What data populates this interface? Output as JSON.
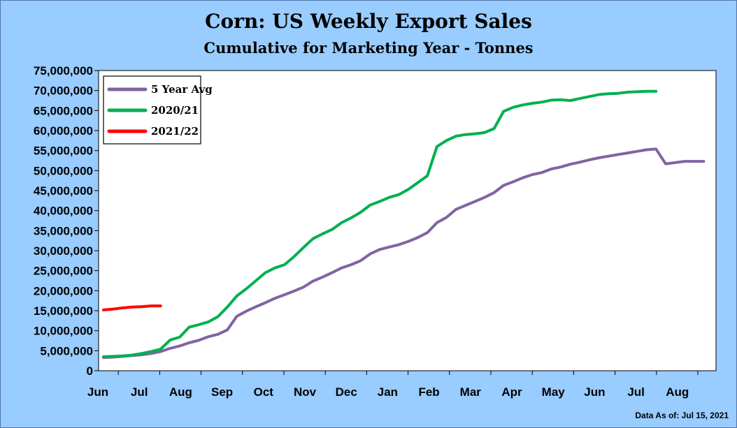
{
  "chart_data": {
    "type": "line",
    "title": "Corn: US Weekly Export Sales",
    "subtitle": "Cumulative for Marketing Year - Tonnes",
    "footnote": "Data As of: Jul 15, 2021",
    "y_ticks": [
      "0",
      "5,000,000",
      "10,000,000",
      "15,000,000",
      "20,000,000",
      "25,000,000",
      "30,000,000",
      "35,000,000",
      "40,000,000",
      "45,000,000",
      "50,000,000",
      "55,000,000",
      "60,000,000",
      "65,000,000",
      "70,000,000",
      "75,000,000"
    ],
    "ylim": [
      0,
      75000000
    ],
    "months": [
      "Jun",
      "Jul",
      "Aug",
      "Sep",
      "Oct",
      "Nov",
      "Dec",
      "Jan",
      "Feb",
      "Mar",
      "Apr",
      "May",
      "Jun",
      "Jul",
      "Aug"
    ],
    "x_unit": "weeks",
    "xlim": [
      0,
      62
    ],
    "grid": false,
    "legend_position": "top-left",
    "series": [
      {
        "name": "5 Year Avg",
        "color": "#8064a2",
        "x": [
          0,
          1,
          2,
          3,
          4,
          5,
          6,
          7,
          8,
          9,
          10,
          11,
          12,
          13,
          14,
          15,
          16,
          17,
          18,
          19,
          20,
          21,
          22,
          23,
          24,
          25,
          26,
          27,
          28,
          29,
          30,
          31,
          32,
          33,
          34,
          35,
          36,
          37,
          38,
          39,
          40,
          41,
          42,
          43,
          44,
          45,
          46,
          47,
          48,
          49,
          50,
          51,
          52,
          53,
          54,
          55,
          56,
          57,
          58,
          59,
          60,
          61
        ],
        "values": [
          3300000,
          3400000,
          3600000,
          3800000,
          4000000,
          4300000,
          4800000,
          5600000,
          6200000,
          7000000,
          7600000,
          8500000,
          9100000,
          10200000,
          13600000,
          14900000,
          16000000,
          17000000,
          18100000,
          19000000,
          19900000,
          20900000,
          22400000,
          23400000,
          24500000,
          25700000,
          26500000,
          27500000,
          29200000,
          30300000,
          30900000,
          31500000,
          32300000,
          33300000,
          34500000,
          37000000,
          38300000,
          40300000,
          41300000,
          42300000,
          43300000,
          44500000,
          46300000,
          47200000,
          48200000,
          49000000,
          49500000,
          50400000,
          50900000,
          51600000,
          52100000,
          52700000,
          53200000,
          53600000,
          54000000,
          54400000,
          54800000,
          55200000,
          55400000,
          51700000,
          52000000,
          52300000
        ],
        "x_tail": [
          62,
          63
        ],
        "values_tail": [
          52300000,
          52300000
        ]
      },
      {
        "name": "2020/21",
        "color": "#00b050",
        "x": [
          0,
          1,
          2,
          3,
          4,
          5,
          6,
          7,
          8,
          9,
          10,
          11,
          12,
          13,
          14,
          15,
          16,
          17,
          18,
          19,
          20,
          21,
          22,
          23,
          24,
          25,
          26,
          27,
          28,
          29,
          30,
          31,
          32,
          33,
          34,
          35,
          36,
          37,
          38,
          39,
          40,
          41,
          42,
          43,
          44,
          45,
          46,
          47,
          48,
          49,
          50,
          51,
          52,
          53,
          54,
          55,
          56,
          57,
          58
        ],
        "values": [
          3500000,
          3600000,
          3700000,
          3900000,
          4300000,
          4800000,
          5400000,
          7700000,
          8400000,
          10900000,
          11500000,
          12200000,
          13500000,
          15900000,
          18700000,
          20500000,
          22500000,
          24500000,
          25700000,
          26500000,
          28500000,
          30800000,
          33000000,
          34200000,
          35300000,
          37000000,
          38200000,
          39600000,
          41400000,
          42300000,
          43300000,
          44000000,
          45300000,
          47000000,
          48700000,
          56000000,
          57500000,
          58600000,
          59000000,
          59200000,
          59500000,
          60500000,
          64800000,
          65800000,
          66400000,
          66800000,
          67100000,
          67600000,
          67700000,
          67500000,
          68000000,
          68500000,
          69000000,
          69200000,
          69300000,
          69600000,
          69700000,
          69800000,
          69800000
        ]
      },
      {
        "name": "2021/22",
        "color": "#ff0000",
        "x": [
          0,
          1,
          2,
          3,
          4,
          5,
          6
        ],
        "values": [
          15200000,
          15400000,
          15700000,
          15900000,
          16000000,
          16200000,
          16200000
        ]
      }
    ]
  }
}
